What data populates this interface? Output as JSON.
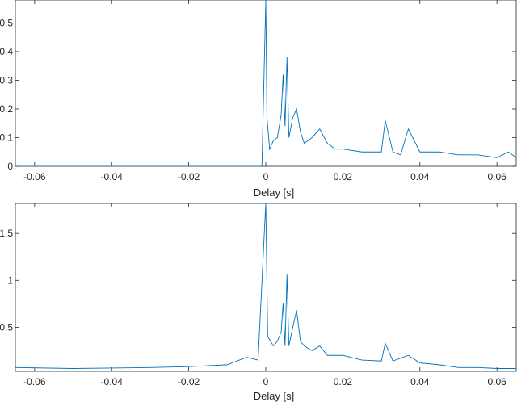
{
  "chart_data": [
    {
      "type": "line",
      "xlabel": "Delay [s]",
      "ylabel": "",
      "xlim": [
        -0.065,
        0.065
      ],
      "ylim": [
        0,
        0.58
      ],
      "xticks": [
        -0.06,
        -0.04,
        -0.02,
        0,
        0.02,
        0.04,
        0.06
      ],
      "xtick_labels": [
        "-0.06",
        "-0.04",
        "-0.02",
        "0",
        "0.02",
        "0.04",
        "0.06"
      ],
      "yticks": [
        0,
        0.1,
        0.2,
        0.3,
        0.4,
        0.5
      ],
      "ytick_labels": [
        "0",
        "0.1",
        "0.2",
        "0.3",
        "0.4",
        "0.5"
      ],
      "grid": false,
      "line_color": "#0072BD",
      "series": [
        {
          "x": [
            -0.065,
            -0.02,
            -0.001,
            0,
            0.0003,
            0.001,
            0.002,
            0.003,
            0.004,
            0.0045,
            0.005,
            0.0055,
            0.006,
            0.007,
            0.008,
            0.009,
            0.01,
            0.012,
            0.014,
            0.016,
            0.018,
            0.02,
            0.025,
            0.03,
            0.031,
            0.033,
            0.035,
            0.037,
            0.04,
            0.045,
            0.05,
            0.055,
            0.06,
            0.063,
            0.065
          ],
          "y": [
            0,
            0,
            0,
            0.58,
            0.17,
            0.06,
            0.09,
            0.1,
            0.18,
            0.32,
            0.14,
            0.38,
            0.1,
            0.17,
            0.2,
            0.12,
            0.08,
            0.1,
            0.13,
            0.08,
            0.06,
            0.06,
            0.05,
            0.05,
            0.16,
            0.05,
            0.04,
            0.13,
            0.05,
            0.05,
            0.04,
            0.04,
            0.03,
            0.05,
            0.03
          ]
        }
      ]
    },
    {
      "type": "line",
      "xlabel": "Delay [s]",
      "ylabel": "",
      "xlim": [
        -0.065,
        0.065
      ],
      "ylim": [
        0.03,
        1.82
      ],
      "xticks": [
        -0.06,
        -0.04,
        -0.02,
        0,
        0.02,
        0.04,
        0.06
      ],
      "xtick_labels": [
        "-0.06",
        "-0.04",
        "-0.02",
        "0",
        "0.02",
        "0.04",
        "0.06"
      ],
      "yticks": [
        0.5,
        1,
        1.5
      ],
      "ytick_labels": [
        "0.5",
        "1",
        "1.5"
      ],
      "grid": false,
      "line_color": "#0072BD",
      "series": [
        {
          "x": [
            -0.065,
            -0.05,
            -0.03,
            -0.02,
            -0.01,
            -0.005,
            -0.002,
            0,
            0.0005,
            0.002,
            0.003,
            0.004,
            0.0045,
            0.005,
            0.0055,
            0.006,
            0.007,
            0.008,
            0.009,
            0.01,
            0.012,
            0.014,
            0.016,
            0.02,
            0.025,
            0.03,
            0.031,
            0.033,
            0.037,
            0.04,
            0.045,
            0.05,
            0.055,
            0.06,
            0.065
          ],
          "y": [
            0.07,
            0.06,
            0.07,
            0.08,
            0.1,
            0.18,
            0.15,
            1.82,
            0.4,
            0.3,
            0.35,
            0.45,
            0.76,
            0.3,
            1.06,
            0.3,
            0.5,
            0.68,
            0.35,
            0.3,
            0.25,
            0.3,
            0.2,
            0.2,
            0.15,
            0.14,
            0.33,
            0.14,
            0.2,
            0.12,
            0.1,
            0.07,
            0.07,
            0.06,
            0.06
          ]
        }
      ]
    }
  ]
}
